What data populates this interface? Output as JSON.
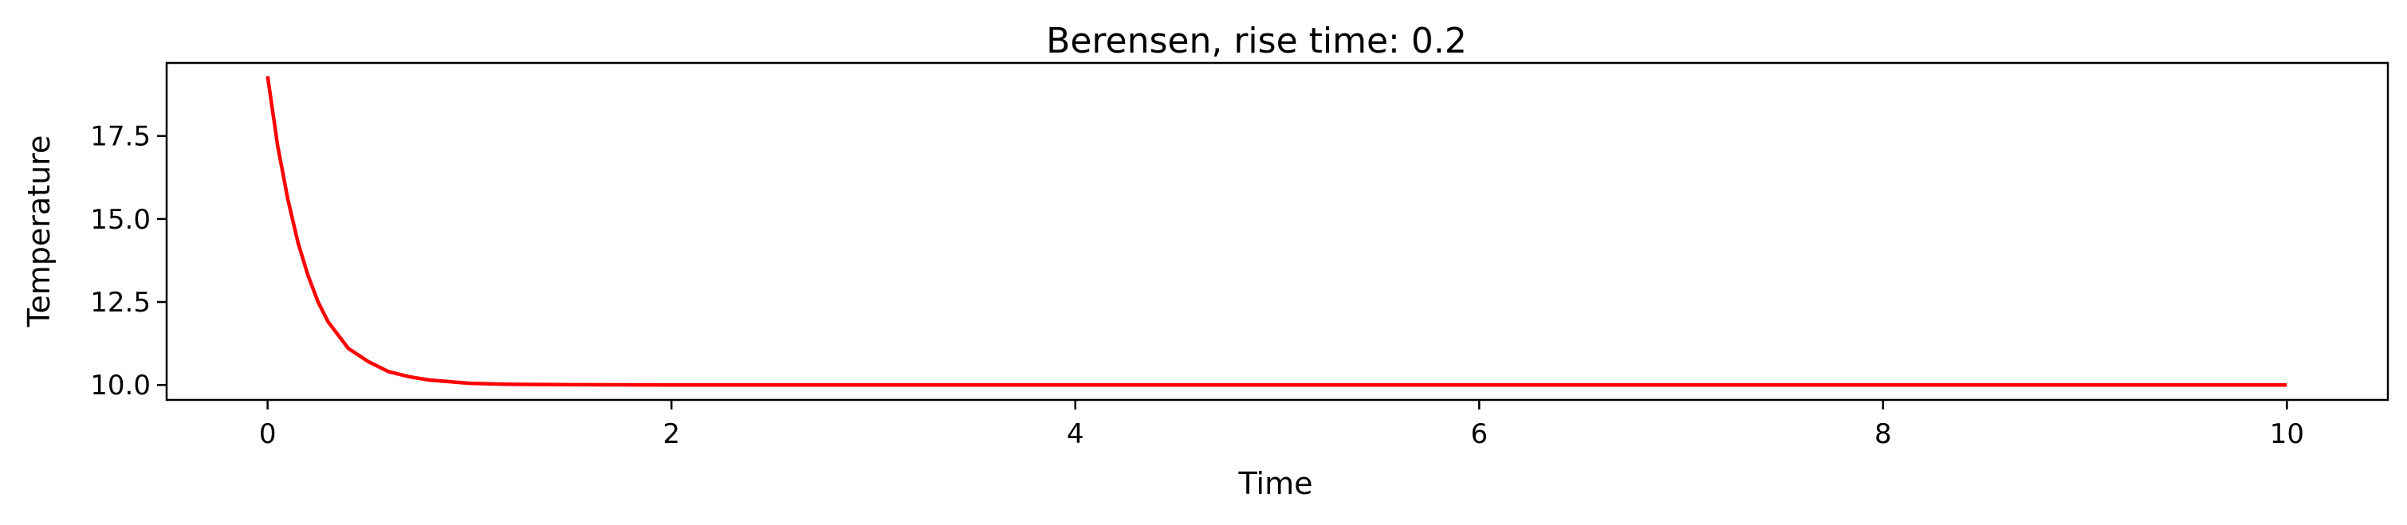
{
  "chart_data": {
    "type": "line",
    "title": "Berensen, rise time: 0.2",
    "xlabel": "Time",
    "ylabel": "Temperature",
    "xlim": [
      -0.5,
      10.5
    ],
    "ylim": [
      9.55,
      19.7
    ],
    "xticks": [
      0,
      2,
      4,
      6,
      8,
      10
    ],
    "xtick_labels": [
      "0",
      "2",
      "4",
      "6",
      "8",
      "10"
    ],
    "yticks": [
      10.0,
      12.5,
      15.0,
      17.5
    ],
    "ytick_labels": [
      "10.0",
      "12.5",
      "15.0",
      "17.5"
    ],
    "grid": false,
    "series": [
      {
        "name": "Temperature",
        "color": "#ff0000",
        "x": [
          0,
          0.05,
          0.1,
          0.15,
          0.2,
          0.25,
          0.3,
          0.4,
          0.5,
          0.6,
          0.7,
          0.8,
          1.0,
          1.2,
          1.5,
          2.0,
          3.0,
          4.0,
          5.0,
          6.0,
          7.0,
          8.0,
          9.0,
          10.0
        ],
        "values": [
          19.3,
          17.2,
          15.6,
          14.3,
          13.3,
          12.5,
          11.9,
          11.1,
          10.7,
          10.4,
          10.25,
          10.15,
          10.05,
          10.02,
          10.01,
          10.0,
          10.0,
          10.0,
          10.0,
          10.0,
          10.0,
          10.0,
          10.0,
          10.0
        ]
      }
    ]
  }
}
